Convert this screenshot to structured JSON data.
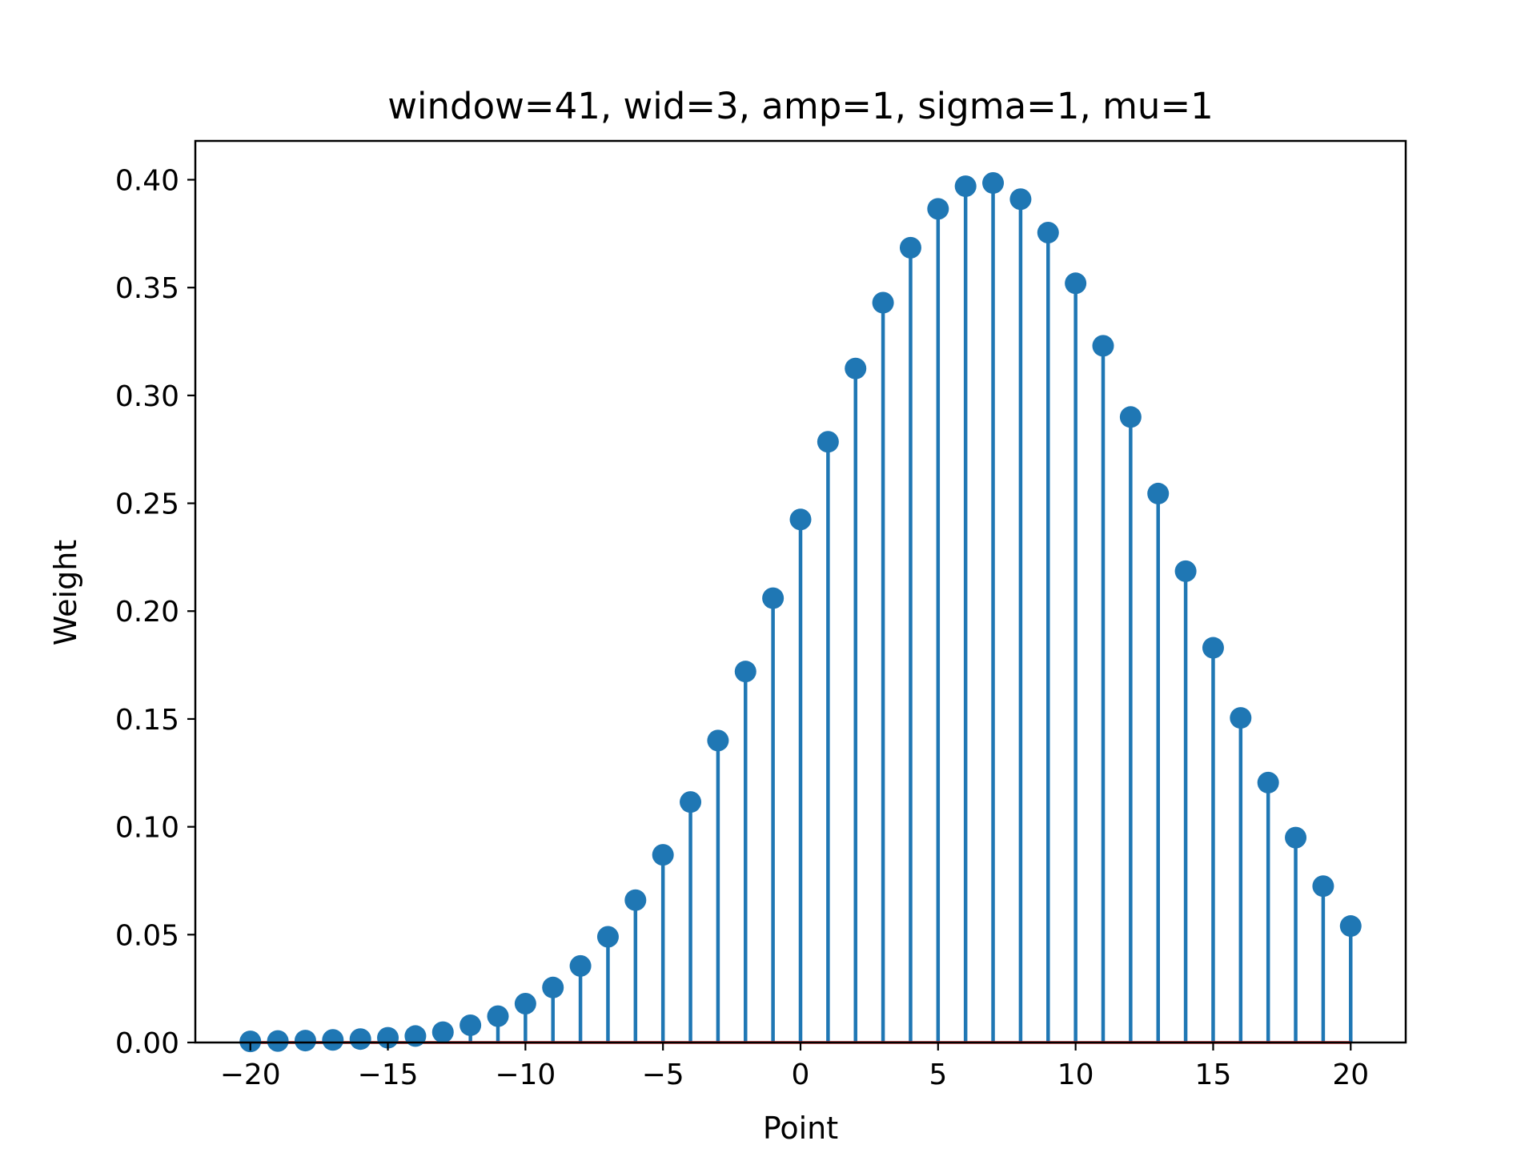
{
  "chart_data": {
    "type": "stem",
    "title": "window=41, wid=3, amp=1, sigma=1, mu=1",
    "xlabel": "Point",
    "ylabel": "Weight",
    "xlim": [
      -22,
      22
    ],
    "ylim": [
      0,
      0.418
    ],
    "xticks": [
      -20,
      -15,
      -10,
      -5,
      0,
      5,
      10,
      15,
      20
    ],
    "xtick_labels": [
      "−20",
      "−15",
      "−10",
      "−5",
      "0",
      "5",
      "10",
      "15",
      "20"
    ],
    "yticks": [
      0.0,
      0.05,
      0.1,
      0.15,
      0.2,
      0.25,
      0.3,
      0.35,
      0.4
    ],
    "ytick_labels": [
      "0.00",
      "0.05",
      "0.10",
      "0.15",
      "0.20",
      "0.25",
      "0.30",
      "0.35",
      "0.40"
    ],
    "grid": false,
    "colors": {
      "stem": "#1f77b4",
      "marker": "#1f77b4",
      "baseline": "#d62728"
    },
    "series": [
      {
        "x": [
          -20,
          -19,
          -18,
          -17,
          -16,
          -15,
          -14,
          -13,
          -12,
          -11,
          -10,
          -9,
          -8,
          -7,
          -6,
          -5,
          -4,
          -3,
          -2,
          -1,
          0,
          1,
          2,
          3,
          4,
          5,
          6,
          7,
          8,
          9,
          10,
          11,
          12,
          13,
          14,
          15,
          16,
          17,
          18,
          19,
          20
        ],
        "y": [
          0.0005,
          0.0007,
          0.0009,
          0.0012,
          0.0016,
          0.0022,
          0.003,
          0.0048,
          0.008,
          0.0122,
          0.018,
          0.0255,
          0.0355,
          0.049,
          0.066,
          0.087,
          0.1115,
          0.14,
          0.172,
          0.206,
          0.2425,
          0.2785,
          0.3125,
          0.343,
          0.3685,
          0.3865,
          0.397,
          0.3985,
          0.391,
          0.3755,
          0.352,
          0.323,
          0.29,
          0.2545,
          0.2185,
          0.183,
          0.1505,
          0.1205,
          0.095,
          0.0725,
          0.054
        ]
      }
    ]
  }
}
